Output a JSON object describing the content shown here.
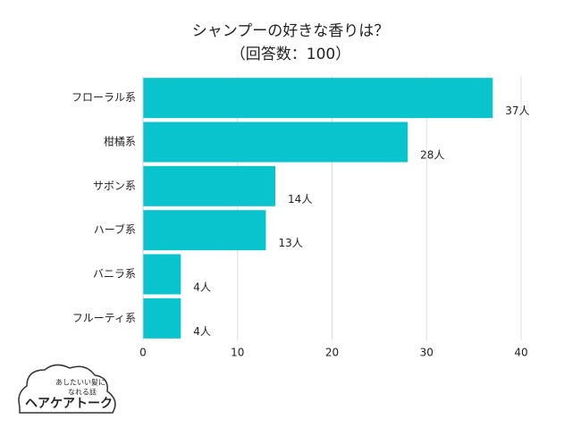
{
  "chart_data": {
    "type": "hbar",
    "title": "シャンプーの好きな香りは？",
    "subtitle": "（回答数：100）",
    "categories": [
      "フローラル系",
      "柑橘系",
      "サボン系",
      "ハーブ系",
      "バニラ系",
      "フルーティ系"
    ],
    "values": [
      37,
      28,
      14,
      13,
      4,
      4
    ],
    "value_labels": [
      "37人",
      "28人",
      "14人",
      "13人",
      "4人",
      "4人"
    ],
    "color": "#0ac4cd",
    "xlim": [
      0,
      40
    ],
    "xticks": [
      0,
      10,
      20,
      30,
      40
    ],
    "grid": true
  },
  "logo": {
    "tagline": "あしたいい髪に",
    "tagline2": "なれる話",
    "name": "ヘアケアトーク"
  }
}
